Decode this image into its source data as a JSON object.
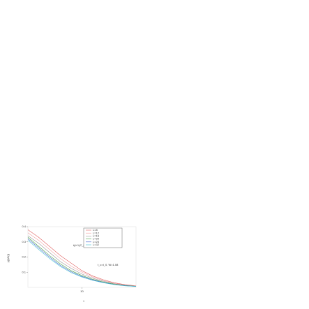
{
  "chart_data": {
    "type": "line",
    "ylabel": "γ(t)C(t)",
    "xlabel": "t",
    "annotations": [
      "t(t+1)C_t^LOW",
      "t_c=t_0, W=1.08"
    ],
    "x": [
      0,
      2,
      4,
      6,
      8,
      10,
      12,
      14,
      16,
      18,
      20
    ],
    "series": [
      {
        "name": "L=8",
        "color": "#e06060",
        "values": [
          0.38,
          0.33,
          0.27,
          0.21,
          0.16,
          0.11,
          0.075,
          0.05,
          0.03,
          0.018,
          0.01
        ]
      },
      {
        "name": "L=12",
        "color": "#f0a0a0",
        "values": [
          0.36,
          0.31,
          0.25,
          0.19,
          0.14,
          0.1,
          0.068,
          0.045,
          0.027,
          0.016,
          0.009
        ]
      },
      {
        "name": "L=16",
        "color": "#999999",
        "values": [
          0.34,
          0.29,
          0.23,
          0.17,
          0.125,
          0.088,
          0.06,
          0.04,
          0.024,
          0.014,
          0.008
        ]
      },
      {
        "name": "L=20",
        "color": "#40a040",
        "values": [
          0.33,
          0.27,
          0.21,
          0.155,
          0.11,
          0.078,
          0.053,
          0.035,
          0.021,
          0.012,
          0.007
        ]
      },
      {
        "name": "L=24",
        "color": "#4060d0",
        "values": [
          0.32,
          0.26,
          0.2,
          0.145,
          0.103,
          0.072,
          0.049,
          0.032,
          0.019,
          0.011,
          0.006
        ]
      },
      {
        "name": "L=32",
        "color": "#40c0d0",
        "values": [
          0.31,
          0.25,
          0.19,
          0.138,
          0.097,
          0.068,
          0.046,
          0.03,
          0.018,
          0.01,
          0.006
        ]
      }
    ],
    "xlim": [
      0,
      20
    ],
    "xticks": [
      10
    ],
    "ylim": [
      0,
      0.4
    ],
    "yticks": [
      0.1,
      0.2,
      0.3,
      0.4
    ]
  }
}
